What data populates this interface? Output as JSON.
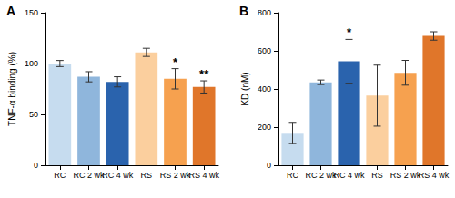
{
  "chart_data": [
    {
      "type": "bar",
      "title": "A",
      "y_label": "TNF-α binding (%)",
      "categories": [
        "RC",
        "RC 2 wk",
        "RC 4 wk",
        "RS",
        "RS 2 wk",
        "RS 4 wk"
      ],
      "values": [
        100,
        87,
        82,
        111,
        85,
        77
      ],
      "errors": [
        3,
        5,
        5,
        4,
        10,
        6
      ],
      "colors": [
        "#c6dcef",
        "#8fb6dc",
        "#2a63ad",
        "#fbcf9e",
        "#f6a14f",
        "#e0762a"
      ],
      "ylim": [
        0,
        150
      ],
      "yticks": [
        0,
        50,
        100,
        150
      ],
      "grid": false,
      "annotations": [
        {
          "category": "RS 2 wk",
          "text": "*"
        },
        {
          "category": "RS 4 wk",
          "text": "**"
        }
      ]
    },
    {
      "type": "bar",
      "title": "B",
      "y_label": "KD (nM)",
      "categories": [
        "RC",
        "RC 2 wk",
        "RC 4 wk",
        "RS",
        "RS 2 wk",
        "RS 4 wk"
      ],
      "values": [
        170,
        435,
        545,
        365,
        485,
        678
      ],
      "errors": [
        55,
        12,
        115,
        160,
        65,
        22
      ],
      "colors": [
        "#c6dcef",
        "#8fb6dc",
        "#2a63ad",
        "#fbcf9e",
        "#f6a14f",
        "#e0762a"
      ],
      "ylim": [
        0,
        800
      ],
      "yticks": [
        0,
        200,
        400,
        600,
        800
      ],
      "grid": false,
      "annotations": [
        {
          "category": "RC 4 wk",
          "text": "*"
        }
      ]
    }
  ]
}
